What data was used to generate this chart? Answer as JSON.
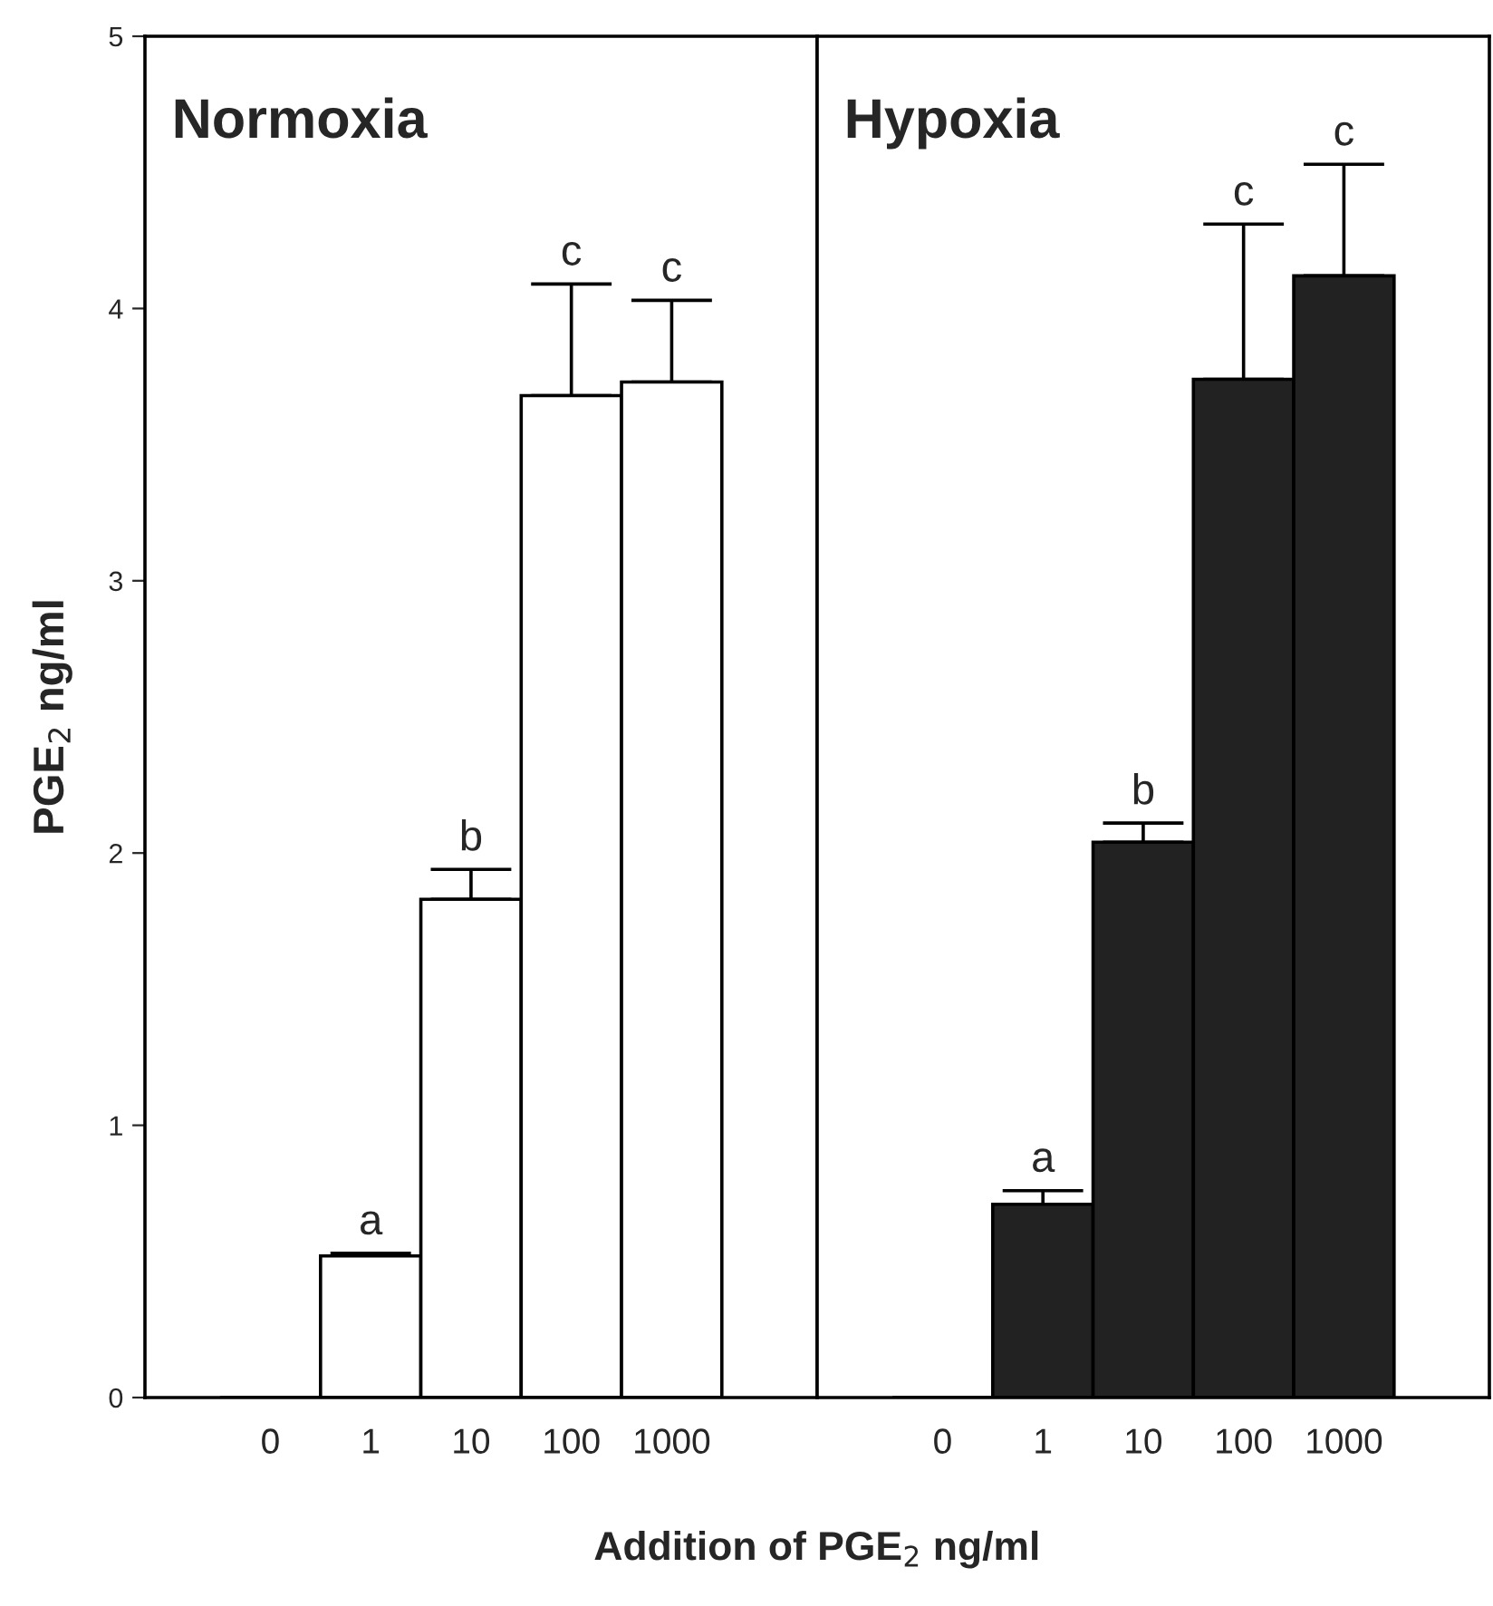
{
  "chart_data": [
    {
      "type": "bar",
      "title": "Normoxia",
      "ylabel": "PGE$_{2}$ ng/ml",
      "xlabel": "Addition of PGE$_{2}$ ng/ml",
      "categories": [
        "0",
        "1",
        "10",
        "100",
        "1000"
      ],
      "series": [
        {
          "color": "#ffffff",
          "values": [
            0,
            0.52,
            1.83,
            3.68,
            3.73
          ],
          "errors": [
            null,
            [
              0.52,
              0.53
            ],
            [
              1.83,
              1.94
            ],
            [
              3.68,
              4.09
            ],
            [
              3.73,
              4.03
            ]
          ]
        }
      ],
      "ylim": [
        0,
        5
      ],
      "yticks": [
        0,
        1,
        2,
        3,
        4,
        5
      ],
      "grid": false,
      "legend": false,
      "annotations": [
        {
          "text": "a",
          "x": "1",
          "y": 0.53
        },
        {
          "text": "b",
          "x": "10",
          "y": 1.94
        },
        {
          "text": "c",
          "x": "100",
          "y": 4.09
        },
        {
          "text": "c",
          "x": "1000",
          "y": 4.03
        }
      ]
    },
    {
      "type": "bar",
      "title": "Hypoxia",
      "categories": [
        "0",
        "1",
        "10",
        "100",
        "1000"
      ],
      "series": [
        {
          "color": "#222222",
          "values": [
            0,
            0.71,
            2.04,
            3.74,
            4.12
          ],
          "errors": [
            null,
            [
              0.71,
              0.76
            ],
            [
              2.04,
              2.11
            ],
            [
              3.74,
              4.31
            ],
            [
              4.12,
              4.53
            ]
          ]
        }
      ],
      "ylim": [
        0,
        5
      ],
      "yticks": [
        0,
        1,
        2,
        3,
        4,
        5
      ],
      "tick_labels": "x",
      "grid": false,
      "legend": false,
      "annotations": [
        {
          "text": "a",
          "x": "1",
          "y": 0.76
        },
        {
          "text": "b",
          "x": "10",
          "y": 2.11
        },
        {
          "text": "c",
          "x": "100",
          "y": 4.31
        },
        {
          "text": "c",
          "x": "1000",
          "y": 4.53
        }
      ]
    }
  ]
}
